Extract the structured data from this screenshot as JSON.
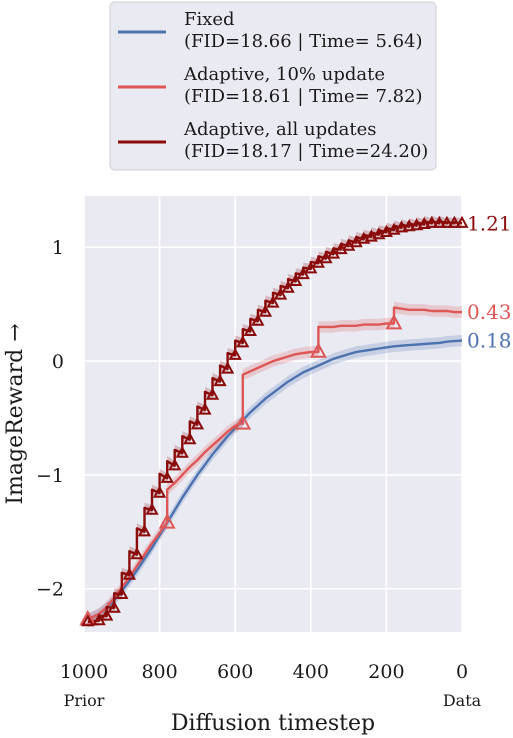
{
  "chart_data": {
    "type": "line",
    "xlabel": "Diffusion timestep",
    "ylabel": "ImageReward →",
    "x_reversed": true,
    "xlim": [
      1000,
      0
    ],
    "ylim": [
      -2.38,
      1.45
    ],
    "grid": true,
    "legend_position": "top-center",
    "xticks": [
      {
        "value": 1000,
        "label": "1000"
      },
      {
        "value": 800,
        "label": "800"
      },
      {
        "value": 600,
        "label": "600"
      },
      {
        "value": 400,
        "label": "400"
      },
      {
        "value": 200,
        "label": "200"
      },
      {
        "value": 0,
        "label": "0"
      }
    ],
    "yticks": [
      {
        "value": -2,
        "label": "−2"
      },
      {
        "value": -1,
        "label": "−1"
      },
      {
        "value": 0,
        "label": "0"
      },
      {
        "value": 1,
        "label": "1"
      }
    ],
    "axis_annotations": {
      "prior_label": "Prior",
      "data_label": "Data"
    },
    "series": [
      {
        "name_line1": "Fixed",
        "name_line2": "(FID=18.66 | Time= 5.64)",
        "color": "#4c72b0",
        "end_label": "0.18",
        "x": [
          990,
          960,
          940,
          920,
          900,
          880,
          860,
          840,
          820,
          800,
          780,
          760,
          740,
          720,
          700,
          680,
          660,
          640,
          620,
          600,
          580,
          560,
          540,
          520,
          500,
          480,
          460,
          440,
          420,
          400,
          380,
          360,
          340,
          320,
          300,
          280,
          260,
          240,
          220,
          200,
          180,
          160,
          140,
          120,
          100,
          80,
          60,
          40,
          20,
          0
        ],
        "y": [
          -2.27,
          -2.22,
          -2.17,
          -2.1,
          -2.02,
          -1.93,
          -1.84,
          -1.74,
          -1.64,
          -1.53,
          -1.42,
          -1.31,
          -1.2,
          -1.1,
          -1.0,
          -0.91,
          -0.82,
          -0.74,
          -0.66,
          -0.59,
          -0.52,
          -0.45,
          -0.39,
          -0.33,
          -0.28,
          -0.23,
          -0.18,
          -0.14,
          -0.1,
          -0.07,
          -0.04,
          -0.01,
          0.02,
          0.04,
          0.06,
          0.08,
          0.09,
          0.1,
          0.11,
          0.12,
          0.13,
          0.135,
          0.14,
          0.145,
          0.15,
          0.155,
          0.16,
          0.17,
          0.175,
          0.18
        ],
        "band": 0.05
      },
      {
        "name_line1": "Adaptive, 10% update",
        "name_line2": "(FID=18.61 | Time= 7.82)",
        "color": "#dd5757",
        "end_label": "0.43",
        "x": [
          990,
          960,
          940,
          920,
          900,
          880,
          860,
          840,
          820,
          800,
          790,
          780,
          780,
          760,
          740,
          720,
          700,
          680,
          660,
          640,
          620,
          600,
          590,
          580,
          580,
          560,
          540,
          520,
          500,
          480,
          460,
          440,
          420,
          400,
          390,
          380,
          380,
          360,
          340,
          320,
          300,
          280,
          260,
          240,
          220,
          200,
          190,
          180,
          180,
          160,
          140,
          120,
          100,
          80,
          60,
          40,
          20,
          0
        ],
        "y": [
          -2.27,
          -2.22,
          -2.16,
          -2.08,
          -1.99,
          -1.9,
          -1.8,
          -1.7,
          -1.6,
          -1.51,
          -1.46,
          -1.42,
          -1.13,
          -1.07,
          -1.0,
          -0.93,
          -0.87,
          -0.8,
          -0.74,
          -0.68,
          -0.62,
          -0.57,
          -0.55,
          -0.55,
          -0.12,
          -0.09,
          -0.06,
          -0.03,
          0.0,
          0.02,
          0.04,
          0.06,
          0.07,
          0.08,
          0.08,
          0.08,
          0.3,
          0.3,
          0.3,
          0.31,
          0.31,
          0.31,
          0.32,
          0.32,
          0.32,
          0.33,
          0.33,
          0.33,
          0.47,
          0.46,
          0.45,
          0.45,
          0.45,
          0.44,
          0.44,
          0.44,
          0.43,
          0.43
        ],
        "band": 0.05,
        "markers": [
          {
            "x": 990,
            "y": -2.27
          },
          {
            "x": 780,
            "y": -1.42
          },
          {
            "x": 580,
            "y": -0.55
          },
          {
            "x": 380,
            "y": 0.08
          },
          {
            "x": 180,
            "y": 0.33
          }
        ]
      },
      {
        "name_line1": "Adaptive, all updates",
        "name_line2": "(FID=18.17 | Time=24.20)",
        "color": "#8b0a0a",
        "end_label": "1.21",
        "band": 0.045,
        "steps": [
          {
            "x": 990,
            "y0": -2.29,
            "y1": -2.29
          },
          {
            "x": 960,
            "y0": -2.28,
            "y1": -2.24
          },
          {
            "x": 940,
            "y0": -2.24,
            "y1": -2.16
          },
          {
            "x": 920,
            "y0": -2.17,
            "y1": -2.04
          },
          {
            "x": 900,
            "y0": -2.05,
            "y1": -1.86
          },
          {
            "x": 880,
            "y0": -1.88,
            "y1": -1.67
          },
          {
            "x": 860,
            "y0": -1.7,
            "y1": -1.47
          },
          {
            "x": 840,
            "y0": -1.5,
            "y1": -1.29
          },
          {
            "x": 820,
            "y0": -1.31,
            "y1": -1.13
          },
          {
            "x": 800,
            "y0": -1.16,
            "y1": -0.99
          },
          {
            "x": 780,
            "y0": -1.03,
            "y1": -0.88
          },
          {
            "x": 760,
            "y0": -0.92,
            "y1": -0.78
          },
          {
            "x": 740,
            "y0": -0.81,
            "y1": -0.66
          },
          {
            "x": 720,
            "y0": -0.69,
            "y1": -0.53
          },
          {
            "x": 700,
            "y0": -0.56,
            "y1": -0.4
          },
          {
            "x": 680,
            "y0": -0.43,
            "y1": -0.27
          },
          {
            "x": 660,
            "y0": -0.3,
            "y1": -0.15
          },
          {
            "x": 640,
            "y0": -0.18,
            "y1": -0.04
          },
          {
            "x": 620,
            "y0": -0.07,
            "y1": 0.07
          },
          {
            "x": 600,
            "y0": 0.05,
            "y1": 0.18
          },
          {
            "x": 580,
            "y0": 0.16,
            "y1": 0.28
          },
          {
            "x": 560,
            "y0": 0.26,
            "y1": 0.37
          },
          {
            "x": 540,
            "y0": 0.35,
            "y1": 0.45
          },
          {
            "x": 520,
            "y0": 0.43,
            "y1": 0.53
          },
          {
            "x": 500,
            "y0": 0.51,
            "y1": 0.6
          },
          {
            "x": 480,
            "y0": 0.58,
            "y1": 0.66
          },
          {
            "x": 460,
            "y0": 0.64,
            "y1": 0.72
          },
          {
            "x": 440,
            "y0": 0.7,
            "y1": 0.77
          },
          {
            "x": 420,
            "y0": 0.76,
            "y1": 0.82
          },
          {
            "x": 400,
            "y0": 0.81,
            "y1": 0.87
          },
          {
            "x": 380,
            "y0": 0.86,
            "y1": 0.92
          },
          {
            "x": 360,
            "y0": 0.9,
            "y1": 0.96
          },
          {
            "x": 340,
            "y0": 0.94,
            "y1": 0.99
          },
          {
            "x": 320,
            "y0": 0.98,
            "y1": 1.03
          },
          {
            "x": 300,
            "y0": 1.01,
            "y1": 1.06
          },
          {
            "x": 280,
            "y0": 1.04,
            "y1": 1.09
          },
          {
            "x": 260,
            "y0": 1.07,
            "y1": 1.11
          },
          {
            "x": 240,
            "y0": 1.09,
            "y1": 1.13
          },
          {
            "x": 220,
            "y0": 1.11,
            "y1": 1.15
          },
          {
            "x": 200,
            "y0": 1.13,
            "y1": 1.17
          },
          {
            "x": 180,
            "y0": 1.15,
            "y1": 1.19
          },
          {
            "x": 160,
            "y0": 1.17,
            "y1": 1.2
          },
          {
            "x": 140,
            "y0": 1.18,
            "y1": 1.21
          },
          {
            "x": 120,
            "y0": 1.19,
            "y1": 1.22
          },
          {
            "x": 100,
            "y0": 1.2,
            "y1": 1.23
          },
          {
            "x": 80,
            "y0": 1.21,
            "y1": 1.23
          },
          {
            "x": 60,
            "y0": 1.21,
            "y1": 1.23
          },
          {
            "x": 40,
            "y0": 1.21,
            "y1": 1.22
          },
          {
            "x": 20,
            "y0": 1.21,
            "y1": 1.22
          },
          {
            "x": 0,
            "y0": 1.21,
            "y1": 1.21
          }
        ]
      }
    ]
  }
}
